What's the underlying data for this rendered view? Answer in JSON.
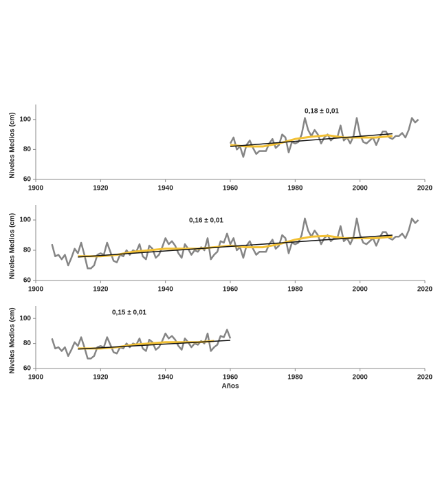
{
  "chart_data": [
    {
      "type": "line",
      "ylabel": "Niveles Medios (cm)",
      "annotation": "0,18 ± 0,01",
      "xlim": [
        1900,
        2020
      ],
      "xticks": [
        1900,
        1920,
        1940,
        1960,
        1980,
        2000,
        2020
      ],
      "ylim": [
        60,
        110
      ],
      "yticks": [
        60,
        80,
        100
      ],
      "series": [
        {
          "color": "#858585",
          "x": [
            1960,
            1961,
            1962,
            1963,
            1964,
            1965,
            1966,
            1967,
            1968,
            1969,
            1970,
            1971,
            1972,
            1973,
            1974,
            1975,
            1976,
            1977,
            1978,
            1979,
            1980,
            1981,
            1982,
            1983,
            1984,
            1985,
            1986,
            1987,
            1988,
            1989,
            1990,
            1991,
            1992,
            1993,
            1994,
            1995,
            1996,
            1997,
            1998,
            1999,
            2000,
            2001,
            2002,
            2003,
            2004,
            2005,
            2006,
            2007,
            2008,
            2009,
            2010,
            2011,
            2012,
            2013,
            2014,
            2015,
            2016,
            2017,
            2018
          ],
          "values": [
            84,
            88,
            80,
            82,
            75,
            83,
            86,
            81,
            77,
            79,
            79,
            79,
            84,
            87,
            81,
            83,
            90,
            88,
            78,
            85,
            84,
            85,
            90,
            101,
            93,
            89,
            93,
            90,
            84,
            88,
            90,
            86,
            88,
            88,
            96,
            86,
            88,
            84,
            89,
            101,
            90,
            85,
            84,
            86,
            88,
            83,
            88,
            92,
            92,
            88,
            87,
            89,
            89,
            91,
            88,
            93,
            101,
            98,
            100
          ]
        },
        {
          "color": "#f2c034",
          "x": [
            1960,
            1965,
            1970,
            1975,
            1980,
            1985,
            1990,
            1995,
            2000,
            2005,
            2010
          ],
          "values": [
            83,
            82,
            82,
            84,
            87,
            88.5,
            89.5,
            88,
            88,
            88,
            89
          ]
        },
        {
          "color": "#111111",
          "x": [
            1960,
            2010
          ],
          "values": [
            82,
            90.5
          ]
        }
      ]
    },
    {
      "type": "line",
      "ylabel": "Niveles Medios (cm)",
      "annotation": "0,16 ± 0,01",
      "xlim": [
        1900,
        2020
      ],
      "xticks": [
        1900,
        1920,
        1940,
        1960,
        1980,
        2000,
        2020
      ],
      "ylim": [
        60,
        110
      ],
      "yticks": [
        60,
        80,
        100
      ],
      "series": [
        {
          "color": "#858585",
          "x": [
            1905,
            1906,
            1907,
            1908,
            1909,
            1910,
            1911,
            1912,
            1913,
            1914,
            1915,
            1916,
            1917,
            1918,
            1919,
            1920,
            1921,
            1922,
            1923,
            1924,
            1925,
            1926,
            1927,
            1928,
            1929,
            1930,
            1931,
            1932,
            1933,
            1934,
            1935,
            1936,
            1937,
            1938,
            1939,
            1940,
            1941,
            1942,
            1943,
            1944,
            1945,
            1946,
            1947,
            1948,
            1949,
            1950,
            1951,
            1952,
            1953,
            1954,
            1955,
            1956,
            1957,
            1958,
            1959,
            1960,
            1961,
            1962,
            1963,
            1964,
            1965,
            1966,
            1967,
            1968,
            1969,
            1970,
            1971,
            1972,
            1973,
            1974,
            1975,
            1976,
            1977,
            1978,
            1979,
            1980,
            1981,
            1982,
            1983,
            1984,
            1985,
            1986,
            1987,
            1988,
            1989,
            1990,
            1991,
            1992,
            1993,
            1994,
            1995,
            1996,
            1997,
            1998,
            1999,
            2000,
            2001,
            2002,
            2003,
            2004,
            2005,
            2006,
            2007,
            2008,
            2009,
            2010,
            2011,
            2012,
            2013,
            2014,
            2015,
            2016,
            2017,
            2018
          ],
          "values": [
            84,
            76,
            77,
            74,
            77,
            70,
            75,
            81,
            78,
            85,
            77,
            68,
            68,
            70,
            77,
            78,
            77,
            85,
            79,
            73,
            72,
            77,
            76,
            80,
            77,
            80,
            79,
            84,
            76,
            74,
            83,
            81,
            75,
            77,
            82,
            88,
            84,
            86,
            83,
            78,
            75,
            84,
            81,
            77,
            80,
            79,
            82,
            80,
            88,
            74,
            77,
            79,
            86,
            85,
            91,
            84,
            88,
            80,
            82,
            75,
            83,
            86,
            81,
            77,
            79,
            79,
            79,
            84,
            87,
            81,
            83,
            90,
            88,
            78,
            85,
            84,
            85,
            90,
            101,
            93,
            89,
            93,
            90,
            84,
            88,
            90,
            86,
            88,
            88,
            96,
            86,
            88,
            84,
            89,
            101,
            90,
            85,
            84,
            86,
            88,
            83,
            88,
            92,
            92,
            88,
            87,
            89,
            89,
            91,
            88,
            93,
            101,
            98,
            100
          ]
        },
        {
          "color": "#f2c034",
          "x": [
            1913,
            1920,
            1925,
            1930,
            1935,
            1940,
            1945,
            1950,
            1955,
            1960,
            1965,
            1970,
            1975,
            1980,
            1985,
            1990,
            1995,
            2000,
            2005,
            2010
          ],
          "values": [
            76,
            76,
            77,
            79,
            80,
            81,
            81,
            81,
            82,
            83,
            82,
            82,
            84,
            87,
            89,
            89.5,
            88,
            88,
            88,
            89
          ]
        },
        {
          "color": "#111111",
          "x": [
            1913,
            2010
          ],
          "values": [
            75.5,
            90
          ]
        }
      ]
    },
    {
      "type": "line",
      "ylabel": "Niveles Medios (cm)",
      "annotation": "0,15 ± 0,01",
      "xlabel": "Años",
      "xlim": [
        1900,
        2020
      ],
      "xticks": [
        1900,
        1920,
        1940,
        1960,
        1980,
        2000,
        2020
      ],
      "ylim": [
        60,
        110
      ],
      "yticks": [
        60,
        80,
        100
      ],
      "series": [
        {
          "color": "#858585",
          "x": [
            1905,
            1906,
            1907,
            1908,
            1909,
            1910,
            1911,
            1912,
            1913,
            1914,
            1915,
            1916,
            1917,
            1918,
            1919,
            1920,
            1921,
            1922,
            1923,
            1924,
            1925,
            1926,
            1927,
            1928,
            1929,
            1930,
            1931,
            1932,
            1933,
            1934,
            1935,
            1936,
            1937,
            1938,
            1939,
            1940,
            1941,
            1942,
            1943,
            1944,
            1945,
            1946,
            1947,
            1948,
            1949,
            1950,
            1951,
            1952,
            1953,
            1954,
            1955,
            1956,
            1957,
            1958,
            1959,
            1960
          ],
          "values": [
            84,
            76,
            77,
            74,
            77,
            70,
            75,
            81,
            78,
            85,
            77,
            68,
            68,
            70,
            77,
            78,
            77,
            85,
            79,
            73,
            72,
            77,
            76,
            80,
            77,
            80,
            79,
            84,
            76,
            74,
            83,
            81,
            75,
            77,
            82,
            88,
            84,
            86,
            83,
            78,
            75,
            84,
            81,
            77,
            80,
            79,
            82,
            80,
            88,
            74,
            77,
            79,
            86,
            85,
            91,
            84
          ]
        },
        {
          "color": "#f2c034",
          "x": [
            1913,
            1920,
            1925,
            1930,
            1935,
            1940,
            1945,
            1950,
            1955
          ],
          "values": [
            76,
            76,
            77,
            79,
            80,
            81,
            81,
            81,
            82
          ]
        },
        {
          "color": "#111111",
          "x": [
            1913,
            1960
          ],
          "values": [
            75.5,
            82.5
          ]
        }
      ]
    }
  ]
}
